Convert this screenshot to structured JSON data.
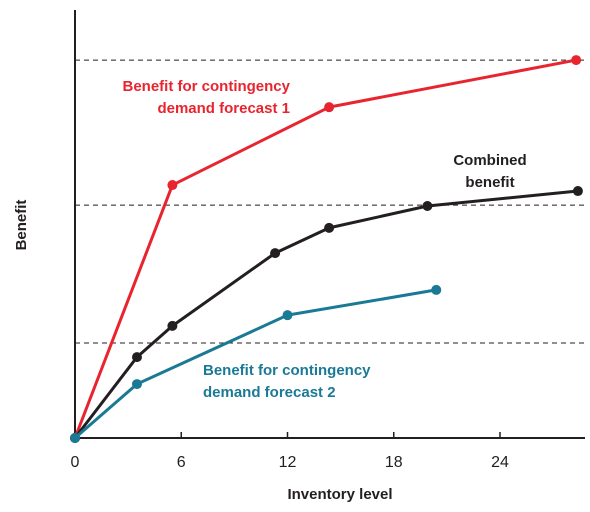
{
  "chart_data": {
    "type": "line",
    "x_label": "Inventory level",
    "y_label": "Benefit",
    "xlim": [
      0,
      28.8
    ],
    "ylim": [
      0,
      100
    ],
    "xticks": [
      0,
      6,
      12,
      18,
      24
    ],
    "reference_lines": [
      88.3,
      54.4,
      22.2
    ],
    "series": [
      {
        "name": "Benefit for contingency demand forecast 1",
        "label": [
          "Benefit for contingency",
          "demand forecast 1"
        ],
        "color": "#e8242f",
        "x": [
          0,
          5.5,
          14.35,
          28.3
        ],
        "values": [
          0,
          59.1,
          77.3,
          88.3
        ]
      },
      {
        "name": "Combined benefit",
        "label": [
          "Combined",
          "benefit"
        ],
        "color": "#231f20",
        "x": [
          0,
          3.5,
          5.5,
          11.3,
          14.35,
          19.9,
          28.4
        ],
        "values": [
          0,
          18.9,
          26.2,
          43.2,
          49.1,
          54.2,
          57.7
        ]
      },
      {
        "name": "Benefit for contingency demand forecast 2",
        "label": [
          "Benefit for contingency",
          "demand forecast 2"
        ],
        "color": "#1a7a96",
        "x": [
          0,
          3.5,
          12.0,
          20.4
        ],
        "values": [
          0,
          12.6,
          28.7,
          34.6
        ]
      }
    ]
  }
}
